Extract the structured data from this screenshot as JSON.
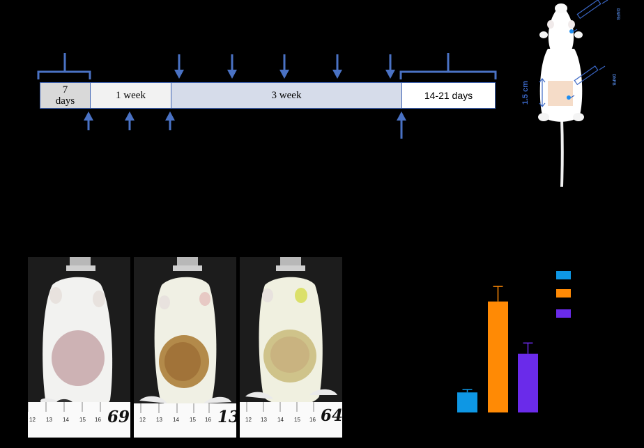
{
  "timeline": {
    "segments": [
      {
        "label_line1": "7",
        "label_line2": "days"
      },
      {
        "label": "1 week"
      },
      {
        "label": "3 week"
      },
      {
        "label": "14-21 days"
      }
    ],
    "colors": {
      "arrow": "#4a72c4",
      "border": "#3f64b5",
      "seg1": "#d9d9d9",
      "seg2": "#f2f2f2",
      "seg3": "#d6dcea",
      "seg4": "#ffffff"
    }
  },
  "rat_diagram": {
    "dimension_label": "1.5 cm",
    "injection_label_top": "DNFB",
    "injection_label_mid": "DNFB",
    "colors": {
      "accent": "#3a66c4",
      "patch": "#f5dcc8"
    }
  },
  "photos": [
    {
      "id": "69",
      "ruler_ticks": [
        "12",
        "13",
        "14",
        "15",
        "16"
      ]
    },
    {
      "id": "13",
      "ruler_ticks": [
        "12",
        "13",
        "14",
        "15",
        "16"
      ]
    },
    {
      "id": "64",
      "ruler_ticks": [
        "12",
        "13",
        "14",
        "15",
        "16"
      ]
    }
  ],
  "chart_data": {
    "type": "bar",
    "categories": [
      "",
      "",
      ""
    ],
    "values": [
      28,
      155,
      82
    ],
    "errors": [
      4,
      21,
      15
    ],
    "colors": [
      "#0e97e4",
      "#ff8a05",
      "#6a2bea"
    ],
    "ylim": [
      0,
      180
    ],
    "legend_placement": "top-right"
  }
}
